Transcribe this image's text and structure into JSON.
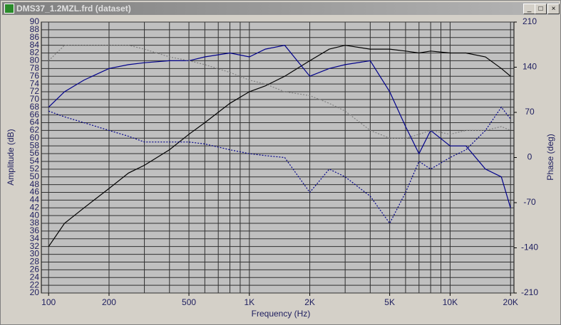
{
  "window": {
    "title": "DMS37_1.2MZL.frd (dataset)"
  },
  "chart_data": {
    "type": "line",
    "xlabel": "Frequency (Hz)",
    "ylabel": "Amplitude (dB)",
    "y2label": "Phase (deg)",
    "xscale": "log",
    "x": [
      100,
      120,
      150,
      200,
      250,
      300,
      400,
      500,
      600,
      800,
      1000,
      1200,
      1500,
      2000,
      2500,
      3000,
      4000,
      5000,
      6000,
      7000,
      8000,
      10000,
      12000,
      15000,
      18000,
      20000
    ],
    "series": [
      {
        "name": null,
        "color": "#000000",
        "style": "solid",
        "values": [
          32,
          38,
          42,
          47,
          51,
          53,
          57,
          61,
          64,
          69,
          72,
          73.5,
          76,
          80,
          83,
          84,
          83,
          83,
          82.5,
          82,
          82.5,
          82,
          82,
          81,
          78,
          76
        ]
      },
      {
        "name": null,
        "color": "#00008b",
        "style": "solid",
        "values": [
          68,
          72,
          75,
          78,
          79,
          79.5,
          80,
          80,
          81,
          82,
          81,
          83,
          84,
          76,
          78,
          79,
          80,
          72,
          63,
          56,
          62,
          58,
          58,
          52,
          50,
          42
        ]
      },
      {
        "name": null,
        "color": "#00008b",
        "style": "dotted",
        "axis": "y2",
        "values": [
          72,
          63,
          54,
          42,
          33,
          24,
          24,
          24,
          21,
          12,
          6,
          3,
          0,
          -54,
          -18,
          -30,
          -60,
          -102,
          -54,
          -6,
          -18,
          0,
          12,
          42,
          78,
          60
        ]
      },
      {
        "name": null,
        "color": "#808080",
        "style": "dotted",
        "axis": "y2",
        "values": [
          150,
          174,
          174,
          174,
          174,
          168,
          156,
          150,
          144,
          132,
          120,
          114,
          102,
          96,
          84,
          72,
          42,
          30,
          30,
          36,
          42,
          36,
          42,
          42,
          48,
          42
        ]
      }
    ],
    "xlim": [
      92,
      20800
    ],
    "xticks": [
      100,
      200,
      500,
      {
        "value": 1000,
        "label": "1K"
      },
      {
        "value": 2000,
        "label": "2K"
      },
      {
        "value": 5000,
        "label": "5K"
      },
      {
        "value": 10000,
        "label": "10K"
      },
      {
        "value": 20000,
        "label": "20K"
      }
    ],
    "xgrid": [
      100,
      200,
      300,
      400,
      500,
      600,
      700,
      800,
      900,
      1000,
      2000,
      3000,
      4000,
      5000,
      6000,
      7000,
      8000,
      9000,
      10000,
      20000
    ],
    "ylim": [
      20,
      90
    ],
    "yticks": [
      20,
      22,
      24,
      26,
      28,
      30,
      32,
      34,
      36,
      38,
      40,
      42,
      44,
      46,
      48,
      50,
      52,
      54,
      56,
      58,
      60,
      62,
      64,
      66,
      68,
      70,
      72,
      74,
      76,
      78,
      80,
      82,
      84,
      86,
      88,
      90
    ],
    "y2lim": [
      -210,
      210
    ],
    "y2ticks": [
      -210,
      -140,
      -70,
      0,
      70,
      140,
      210
    ],
    "grid": true
  }
}
